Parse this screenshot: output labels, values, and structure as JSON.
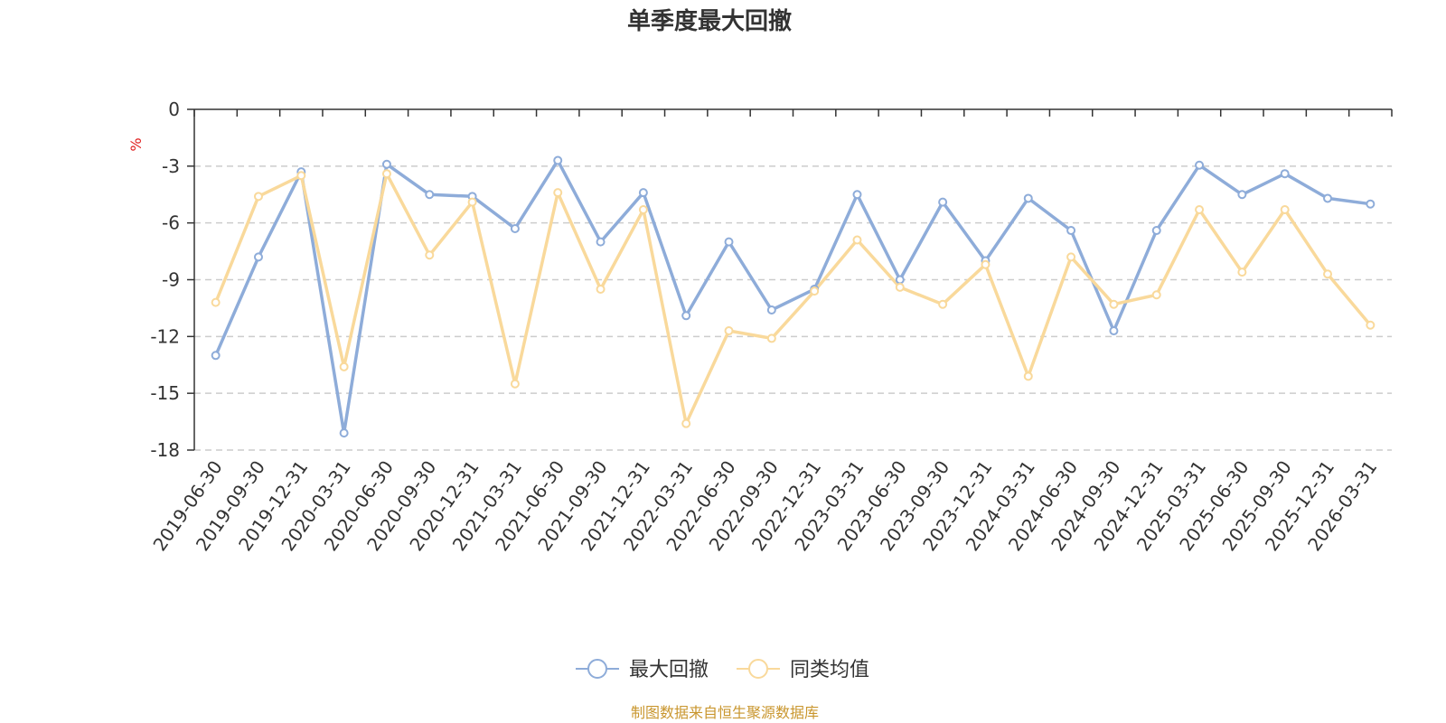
{
  "chart_data": {
    "type": "line",
    "title": "单季度最大回撤",
    "ylabel": "%",
    "xlabel": "",
    "ylim": [
      -18,
      0
    ],
    "yticks": [
      0,
      -3,
      -6,
      -9,
      -12,
      -15,
      -18
    ],
    "grid": true,
    "legend_position": "bottom",
    "categories": [
      "2019-06-30",
      "2019-09-30",
      "2019-12-31",
      "2020-03-31",
      "2020-06-30",
      "2020-09-30",
      "2020-12-31",
      "2021-03-31",
      "2021-06-30",
      "2021-09-30",
      "2021-12-31",
      "2022-03-31",
      "2022-06-30",
      "2022-09-30",
      "2022-12-31",
      "2023-03-31",
      "2023-06-30",
      "2023-09-30",
      "2023-12-31",
      "2024-03-31",
      "2024-06-30",
      "2024-09-30",
      "2024-12-31",
      "2025-03-31",
      "2025-06-30",
      "2025-09-30",
      "2025-12-31",
      "2026-03-31"
    ],
    "series": [
      {
        "name": "最大回撤",
        "color": "#8eacd9",
        "values": [
          -13.0,
          -7.8,
          -3.3,
          -17.1,
          -2.9,
          -4.5,
          -4.6,
          -6.3,
          -2.7,
          -7.0,
          -4.4,
          -10.9,
          -7.0,
          -10.6,
          -9.5,
          -4.5,
          -9.0,
          -4.9,
          -8.0,
          -4.7,
          -6.4,
          -11.7,
          -6.4,
          -2.95,
          -4.5,
          -3.4,
          -4.7,
          -5.0
        ]
      },
      {
        "name": "同类均值",
        "color": "#f9d99b",
        "values": [
          -10.2,
          -4.6,
          -3.5,
          -13.6,
          -3.4,
          -7.7,
          -4.9,
          -14.5,
          -4.4,
          -9.5,
          -5.3,
          -16.6,
          -11.7,
          -12.1,
          -9.6,
          -6.9,
          -9.4,
          -10.3,
          -8.2,
          -14.1,
          -7.8,
          -10.3,
          -9.8,
          -5.3,
          -8.6,
          -5.3,
          -8.7,
          -11.4
        ]
      }
    ]
  },
  "source": {
    "text": "制图数据来自恒生聚源数据库",
    "color": "#c9962e"
  },
  "colors": {
    "unit_label": "#e02020",
    "axis": "#333333",
    "grid": "#cccccc"
  }
}
